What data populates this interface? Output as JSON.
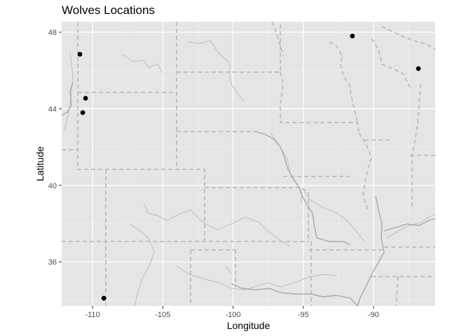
{
  "chart_data": {
    "type": "scatter",
    "title": "Wolves Locations",
    "xlabel": "Longitude",
    "ylabel": "Latitude",
    "xlim": [
      -112.2,
      -85.6
    ],
    "ylim": [
      33.7,
      48.55
    ],
    "x_ticks": [
      -110,
      -105,
      -100,
      -95,
      -90
    ],
    "y_ticks": [
      36,
      40,
      44,
      48
    ],
    "x_tick_labels": [
      "-110",
      "-105",
      "-100",
      "-95",
      "-90"
    ],
    "y_tick_labels": [
      "36",
      "40",
      "44",
      "48"
    ],
    "grid": true,
    "legend": "none",
    "background": "basemap with dashed state borders and rivers",
    "colors": {
      "panel": "#e5e5e5",
      "gridline": "#ffffff",
      "point": "#000000",
      "state_border": "#bdbdbd",
      "river": "#b7c7d6"
    },
    "points": [
      {
        "x": -110.9,
        "y": 46.85
      },
      {
        "x": -110.5,
        "y": 44.55
      },
      {
        "x": -110.7,
        "y": 43.8
      },
      {
        "x": -109.2,
        "y": 34.1
      },
      {
        "x": -91.5,
        "y": 47.8
      },
      {
        "x": -86.8,
        "y": 46.1
      }
    ]
  }
}
